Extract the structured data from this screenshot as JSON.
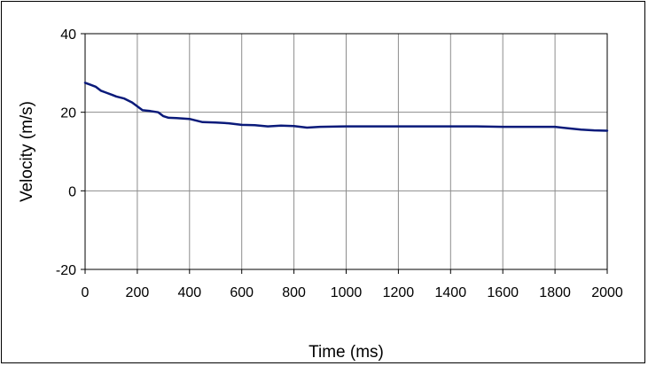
{
  "chart_data": {
    "type": "line",
    "title": "",
    "xlabel": "Time (ms)",
    "ylabel": "Velocity  (m/s)",
    "xlim": [
      0,
      2000
    ],
    "ylim": [
      -20,
      40
    ],
    "x_ticks": [
      0,
      200,
      400,
      600,
      800,
      1000,
      1200,
      1400,
      1600,
      1800,
      2000
    ],
    "y_ticks": [
      -20,
      0,
      20,
      40
    ],
    "x_tick_labels": [
      "0",
      "200",
      "400",
      "600",
      "800",
      "1000",
      "1200",
      "1400",
      "1600",
      "1800",
      "2000"
    ],
    "y_tick_labels": [
      "-20",
      "0",
      "20",
      "40"
    ],
    "grid": true,
    "legend": "none",
    "series": [
      {
        "color": "#0a1a7a",
        "x": [
          0,
          20,
          40,
          60,
          80,
          100,
          120,
          150,
          180,
          200,
          220,
          250,
          280,
          300,
          320,
          350,
          400,
          450,
          500,
          550,
          600,
          650,
          700,
          750,
          800,
          850,
          900,
          1000,
          1100,
          1200,
          1300,
          1400,
          1500,
          1600,
          1700,
          1800,
          1850,
          1900,
          1950,
          2000
        ],
        "y": [
          27.5,
          27,
          26.5,
          25.5,
          25,
          24.5,
          24,
          23.5,
          22.5,
          21.5,
          20.5,
          20.3,
          20,
          19,
          18.6,
          18.5,
          18.3,
          17.5,
          17.4,
          17.2,
          16.8,
          16.7,
          16.4,
          16.6,
          16.5,
          16.1,
          16.3,
          16.4,
          16.4,
          16.4,
          16.4,
          16.4,
          16.4,
          16.3,
          16.3,
          16.3,
          15.9,
          15.6,
          15.4,
          15.3
        ]
      }
    ]
  }
}
